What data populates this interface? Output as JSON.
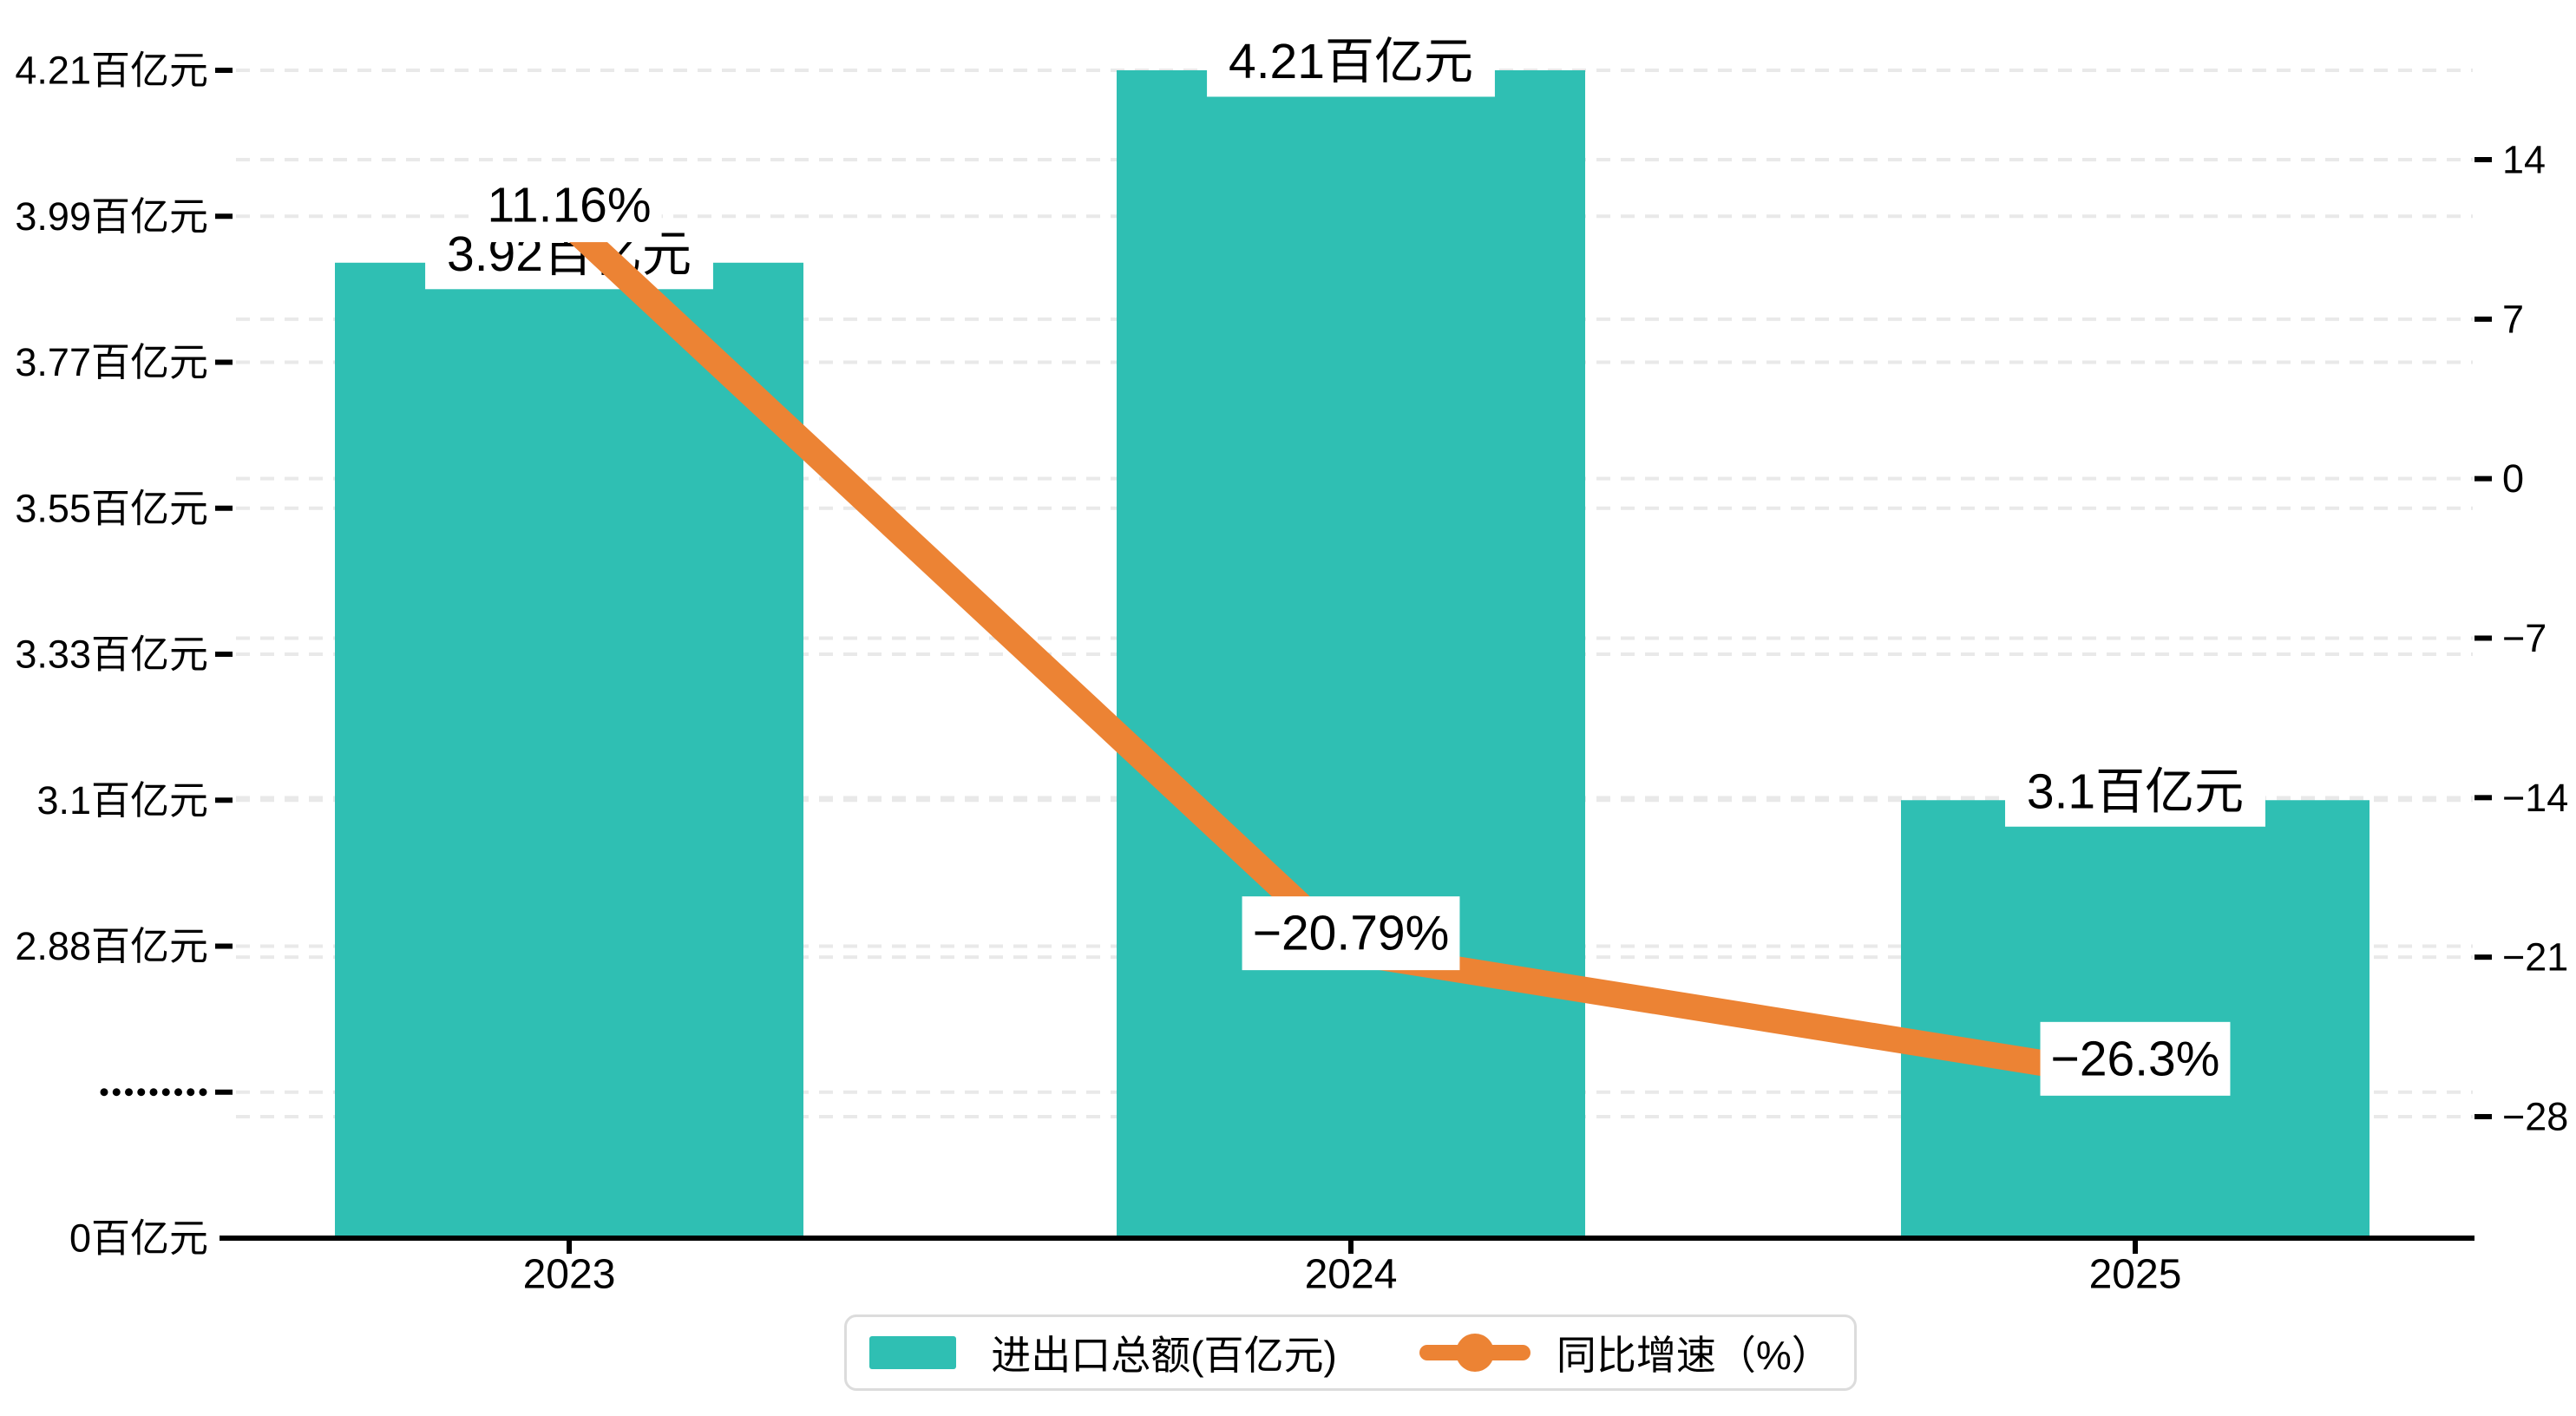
{
  "chart_data": {
    "type": "bar+line combo, dual y-axis with broken (compressed) left axis",
    "categories": [
      "2023",
      "2024",
      "2025"
    ],
    "series": [
      {
        "name": "进出口总额(百亿元)",
        "type": "bar",
        "color": "#2FBFB3",
        "values": [
          3.92,
          4.21,
          3.1
        ],
        "data_labels": [
          "3.92百亿元",
          "4.21百亿元",
          "3.1百亿元"
        ]
      },
      {
        "name": "同比增速（%）",
        "type": "line",
        "color": "#EC8334",
        "values": [
          11.16,
          -20.79,
          -26.3
        ],
        "data_labels": [
          "11.16%",
          "−20.79%",
          "−26.3%"
        ]
      }
    ],
    "left_axis": {
      "unit": "百亿元",
      "tick_labels": [
        "4.21百亿元",
        "3.99百亿元",
        "3.77百亿元",
        "3.55百亿元",
        "3.33百亿元",
        "3.1百亿元",
        "2.88百亿元",
        "·········",
        "0百亿元"
      ],
      "tick_values": [
        4.21,
        3.99,
        3.77,
        3.55,
        3.33,
        3.1,
        2.88,
        null,
        0
      ],
      "axis_break_between": [
        2.88,
        0
      ]
    },
    "right_axis": {
      "tick_labels": [
        "14",
        "7",
        "0",
        "−7",
        "−14",
        "−21",
        "−28"
      ],
      "tick_values": [
        14,
        7,
        0,
        -7,
        -14,
        -21,
        -28
      ],
      "range": [
        -28,
        14
      ]
    },
    "grid": {
      "style": "dashed",
      "on": true
    },
    "legend_position": "bottom-center"
  },
  "legend": {
    "items": [
      {
        "label": "进出口总额(百亿元)",
        "marker": "square",
        "color": "#2FBFB3"
      },
      {
        "label": "同比增速（%）",
        "marker": "line-dot",
        "color": "#EC8334"
      }
    ]
  },
  "colors": {
    "bar": "#2FBFB3",
    "line": "#EC8334",
    "axis": "#000000",
    "grid": "#E9E9E9",
    "label_background": "#FFFFFF",
    "legend_border": "#DCDCDC",
    "background": "#FFFFFF"
  }
}
